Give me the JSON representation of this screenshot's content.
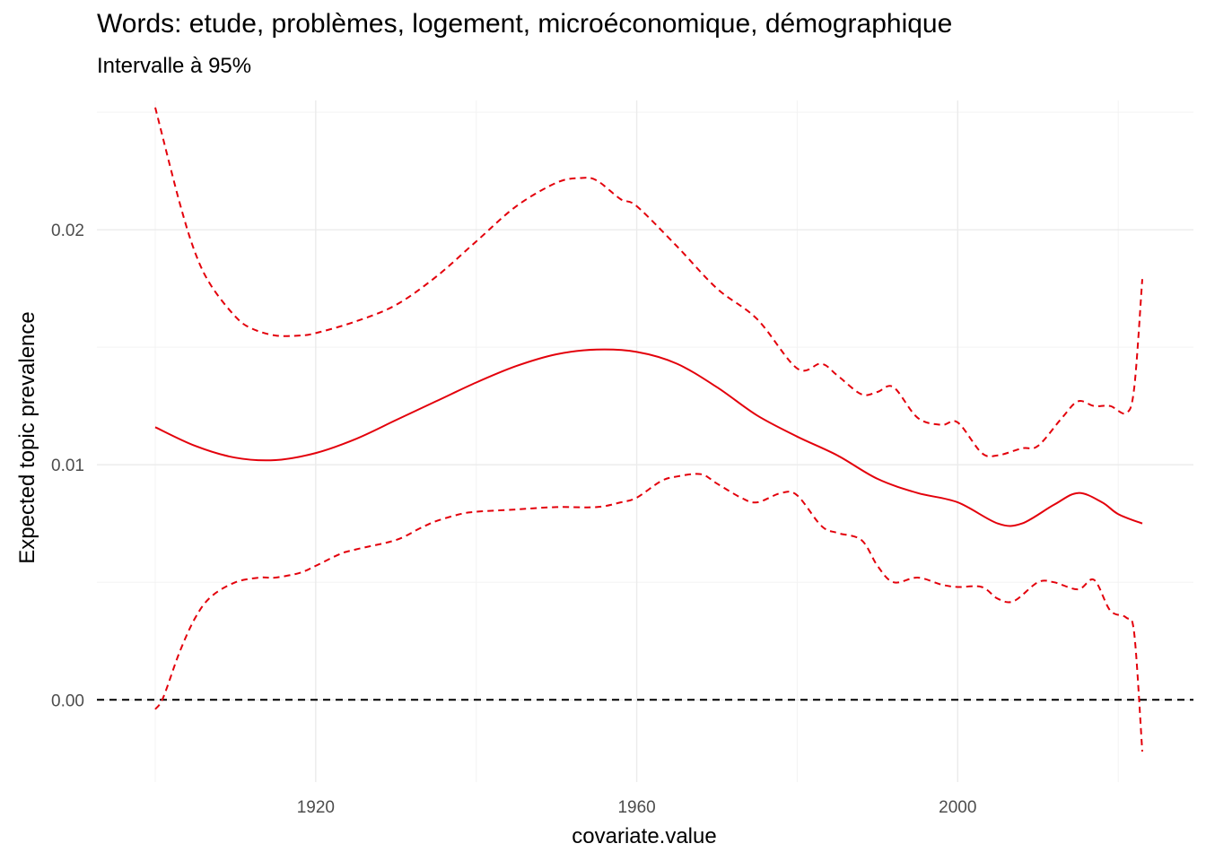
{
  "chart_data": {
    "type": "line",
    "title": "Words: etude, problèmes, logement, microéconomique, démographique",
    "subtitle": "Intervalle à 95%",
    "xlabel": "covariate.value",
    "ylabel": "Expected topic prevalence",
    "xlim": [
      1900,
      2023
    ],
    "ylim": [
      -0.0035,
      0.0255
    ],
    "x_ticks": [
      1920,
      1960,
      2000
    ],
    "x_tick_labels": [
      "1920",
      "1960",
      "2000"
    ],
    "y_ticks": [
      0.0,
      0.01,
      0.02
    ],
    "y_tick_labels": [
      "0.00",
      "0.01",
      "0.02"
    ],
    "grid": true,
    "reference_line": {
      "y": 0,
      "style": "dashed",
      "color": "#000000"
    },
    "colors": {
      "series": "#e3000b",
      "grid": "#ebebeb",
      "reference": "#000000"
    },
    "series": [
      {
        "role": "estimate",
        "style": "solid",
        "x": [
          1900,
          1905,
          1910,
          1915,
          1920,
          1925,
          1930,
          1935,
          1940,
          1945,
          1950,
          1955,
          1960,
          1965,
          1970,
          1975,
          1980,
          1985,
          1990,
          1995,
          2000,
          2005,
          2008,
          2012,
          2015,
          2018,
          2020,
          2023
        ],
        "y": [
          0.0116,
          0.0108,
          0.0103,
          0.0102,
          0.0105,
          0.0111,
          0.0119,
          0.0127,
          0.0135,
          0.0142,
          0.0147,
          0.0149,
          0.0148,
          0.0143,
          0.0133,
          0.0121,
          0.0112,
          0.0104,
          0.0094,
          0.0088,
          0.0084,
          0.0075,
          0.0075,
          0.0083,
          0.0088,
          0.0084,
          0.0079,
          0.0075
        ]
      },
      {
        "role": "upper",
        "style": "dashed",
        "x": [
          1900,
          1903,
          1905,
          1907,
          1910,
          1912,
          1915,
          1918,
          1920,
          1925,
          1930,
          1935,
          1940,
          1945,
          1950,
          1953,
          1955,
          1958,
          1960,
          1965,
          1970,
          1975,
          1980,
          1983,
          1985,
          1988,
          1990,
          1992,
          1995,
          1998,
          2000,
          2003,
          2005,
          2008,
          2010,
          2013,
          2015,
          2017,
          2019,
          2021,
          2022,
          2023
        ],
        "y": [
          0.0252,
          0.0212,
          0.019,
          0.0176,
          0.0163,
          0.0158,
          0.0155,
          0.0155,
          0.0156,
          0.0161,
          0.0168,
          0.018,
          0.0195,
          0.021,
          0.022,
          0.0222,
          0.0221,
          0.0213,
          0.021,
          0.0193,
          0.0175,
          0.0162,
          0.0141,
          0.0143,
          0.0138,
          0.013,
          0.0131,
          0.0133,
          0.012,
          0.0117,
          0.0118,
          0.0105,
          0.0104,
          0.0107,
          0.0108,
          0.012,
          0.0127,
          0.0125,
          0.0125,
          0.0122,
          0.0133,
          0.0179
        ]
      },
      {
        "role": "lower",
        "style": "dashed",
        "x": [
          1900,
          1901,
          1903,
          1905,
          1907,
          1910,
          1913,
          1915,
          1918,
          1920,
          1923,
          1925,
          1930,
          1933,
          1935,
          1938,
          1940,
          1945,
          1950,
          1955,
          1958,
          1960,
          1963,
          1965,
          1968,
          1970,
          1973,
          1975,
          1978,
          1980,
          1983,
          1985,
          1988,
          1990,
          1992,
          1995,
          1998,
          2000,
          2003,
          2005,
          2007,
          2010,
          2012,
          2015,
          2017,
          2019,
          2021,
          2022,
          2023
        ],
        "y": [
          -0.0004,
          0.0001,
          0.002,
          0.0035,
          0.0044,
          0.005,
          0.0052,
          0.0052,
          0.0054,
          0.0057,
          0.0062,
          0.0064,
          0.0068,
          0.0073,
          0.0076,
          0.0079,
          0.008,
          0.0081,
          0.0082,
          0.0082,
          0.0084,
          0.0086,
          0.0093,
          0.0095,
          0.0096,
          0.0092,
          0.0086,
          0.0084,
          0.0088,
          0.0087,
          0.0074,
          0.0071,
          0.0068,
          0.0057,
          0.005,
          0.0052,
          0.0049,
          0.0048,
          0.0048,
          0.0043,
          0.0042,
          0.005,
          0.005,
          0.0047,
          0.0051,
          0.0038,
          0.0035,
          0.0028,
          -0.0022
        ]
      }
    ]
  }
}
